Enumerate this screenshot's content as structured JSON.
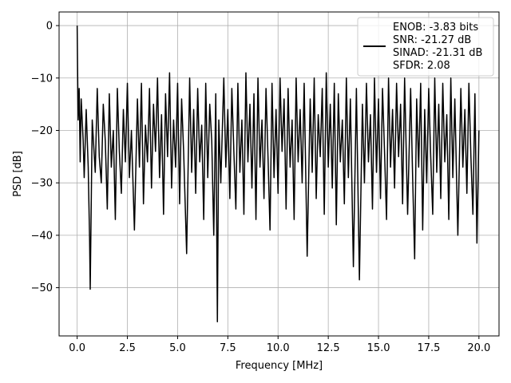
{
  "chart_data": {
    "type": "line",
    "title": "",
    "xlabel": "Frequency [MHz]",
    "ylabel": "PSD [dB]",
    "xlim": [
      -0.9,
      21.0
    ],
    "ylim": [
      -59.2,
      2.6
    ],
    "x_ticks": [
      0.0,
      2.5,
      5.0,
      7.5,
      10.0,
      12.5,
      15.0,
      17.5,
      20.0
    ],
    "x_tick_labels": [
      "0.0",
      "2.5",
      "5.0",
      "7.5",
      "10.0",
      "12.5",
      "15.0",
      "17.5",
      "20.0"
    ],
    "y_ticks": [
      0,
      -10,
      -20,
      -30,
      -40,
      -50
    ],
    "y_tick_labels": [
      "0",
      "−10",
      "−20",
      "−30",
      "−40",
      "−50"
    ],
    "grid": true,
    "legend": {
      "placement": "top-right",
      "entries": [
        "ENOB: -3.83 bits",
        "SNR: -21.27 dB",
        "SINAD: -21.31 dB",
        "SFDR: 2.08"
      ]
    },
    "series": [
      {
        "color": "#000000",
        "points": [
          [
            0.0,
            0.0
          ],
          [
            0.02,
            -8.0
          ],
          [
            0.05,
            -18.0
          ],
          [
            0.1,
            -12.0
          ],
          [
            0.15,
            -26.0
          ],
          [
            0.2,
            -14.0
          ],
          [
            0.3,
            -22.0
          ],
          [
            0.35,
            -29.0
          ],
          [
            0.45,
            -16.0
          ],
          [
            0.55,
            -27.0
          ],
          [
            0.62,
            -41.0
          ],
          [
            0.65,
            -50.3
          ],
          [
            0.75,
            -18.0
          ],
          [
            0.9,
            -28.0
          ],
          [
            1.0,
            -12.0
          ],
          [
            1.1,
            -25.0
          ],
          [
            1.2,
            -30.0
          ],
          [
            1.3,
            -15.0
          ],
          [
            1.4,
            -22.0
          ],
          [
            1.5,
            -35.0
          ],
          [
            1.6,
            -13.0
          ],
          [
            1.7,
            -27.0
          ],
          [
            1.8,
            -20.0
          ],
          [
            1.9,
            -37.0
          ],
          [
            2.0,
            -12.0
          ],
          [
            2.1,
            -24.0
          ],
          [
            2.2,
            -32.0
          ],
          [
            2.3,
            -16.0
          ],
          [
            2.4,
            -26.0
          ],
          [
            2.5,
            -11.0
          ],
          [
            2.6,
            -29.0
          ],
          [
            2.7,
            -20.0
          ],
          [
            2.85,
            -39.0
          ],
          [
            3.0,
            -14.0
          ],
          [
            3.1,
            -27.0
          ],
          [
            3.2,
            -11.0
          ],
          [
            3.3,
            -34.0
          ],
          [
            3.4,
            -19.0
          ],
          [
            3.5,
            -26.0
          ],
          [
            3.6,
            -12.0
          ],
          [
            3.7,
            -31.0
          ],
          [
            3.8,
            -15.0
          ],
          [
            3.9,
            -24.0
          ],
          [
            4.0,
            -10.0
          ],
          [
            4.1,
            -29.0
          ],
          [
            4.2,
            -17.0
          ],
          [
            4.3,
            -36.0
          ],
          [
            4.4,
            -13.0
          ],
          [
            4.5,
            -25.0
          ],
          [
            4.6,
            -9.0
          ],
          [
            4.7,
            -31.0
          ],
          [
            4.8,
            -18.0
          ],
          [
            4.9,
            -27.0
          ],
          [
            5.0,
            -11.0
          ],
          [
            5.1,
            -34.0
          ],
          [
            5.2,
            -14.0
          ],
          [
            5.3,
            -24.0
          ],
          [
            5.45,
            -43.5
          ],
          [
            5.6,
            -10.0
          ],
          [
            5.7,
            -28.0
          ],
          [
            5.8,
            -16.0
          ],
          [
            5.9,
            -32.0
          ],
          [
            6.0,
            -12.0
          ],
          [
            6.1,
            -26.0
          ],
          [
            6.2,
            -19.0
          ],
          [
            6.3,
            -37.0
          ],
          [
            6.4,
            -11.0
          ],
          [
            6.5,
            -29.0
          ],
          [
            6.6,
            -15.0
          ],
          [
            6.7,
            -22.0
          ],
          [
            6.8,
            -40.0
          ],
          [
            6.9,
            -13.0
          ],
          [
            6.98,
            -56.5
          ],
          [
            7.05,
            -18.0
          ],
          [
            7.15,
            -30.0
          ],
          [
            7.3,
            -10.0
          ],
          [
            7.4,
            -27.0
          ],
          [
            7.5,
            -16.0
          ],
          [
            7.6,
            -33.0
          ],
          [
            7.7,
            -12.0
          ],
          [
            7.8,
            -24.0
          ],
          [
            7.9,
            -35.0
          ],
          [
            8.0,
            -11.0
          ],
          [
            8.1,
            -28.0
          ],
          [
            8.2,
            -18.0
          ],
          [
            8.3,
            -36.0
          ],
          [
            8.4,
            -9.0
          ],
          [
            8.5,
            -26.0
          ],
          [
            8.6,
            -15.0
          ],
          [
            8.7,
            -31.0
          ],
          [
            8.8,
            -13.0
          ],
          [
            8.9,
            -37.0
          ],
          [
            9.0,
            -10.0
          ],
          [
            9.1,
            -27.0
          ],
          [
            9.2,
            -18.0
          ],
          [
            9.3,
            -33.0
          ],
          [
            9.4,
            -12.0
          ],
          [
            9.5,
            -25.0
          ],
          [
            9.6,
            -39.0
          ],
          [
            9.7,
            -11.0
          ],
          [
            9.8,
            -29.0
          ],
          [
            9.9,
            -16.0
          ],
          [
            10.0,
            -32.0
          ],
          [
            10.1,
            -10.0
          ],
          [
            10.2,
            -24.0
          ],
          [
            10.3,
            -14.0
          ],
          [
            10.4,
            -35.0
          ],
          [
            10.5,
            -12.0
          ],
          [
            10.6,
            -27.0
          ],
          [
            10.7,
            -18.0
          ],
          [
            10.8,
            -37.0
          ],
          [
            10.9,
            -10.0
          ],
          [
            11.0,
            -26.0
          ],
          [
            11.1,
            -16.0
          ],
          [
            11.2,
            -30.0
          ],
          [
            11.3,
            -11.0
          ],
          [
            11.45,
            -44.0
          ],
          [
            11.6,
            -14.0
          ],
          [
            11.7,
            -28.0
          ],
          [
            11.8,
            -10.0
          ],
          [
            11.9,
            -33.0
          ],
          [
            12.0,
            -17.0
          ],
          [
            12.1,
            -25.0
          ],
          [
            12.2,
            -12.0
          ],
          [
            12.3,
            -36.0
          ],
          [
            12.4,
            -9.0
          ],
          [
            12.5,
            -27.0
          ],
          [
            12.6,
            -15.0
          ],
          [
            12.7,
            -31.0
          ],
          [
            12.8,
            -11.0
          ],
          [
            12.9,
            -38.0
          ],
          [
            13.0,
            -13.0
          ],
          [
            13.1,
            -26.0
          ],
          [
            13.2,
            -18.0
          ],
          [
            13.3,
            -34.0
          ],
          [
            13.4,
            -10.0
          ],
          [
            13.5,
            -29.0
          ],
          [
            13.6,
            -14.0
          ],
          [
            13.75,
            -46.0
          ],
          [
            13.9,
            -12.0
          ],
          [
            14.05,
            -48.5
          ],
          [
            14.2,
            -15.0
          ],
          [
            14.3,
            -30.0
          ],
          [
            14.4,
            -11.0
          ],
          [
            14.5,
            -26.0
          ],
          [
            14.6,
            -17.0
          ],
          [
            14.7,
            -35.0
          ],
          [
            14.8,
            -10.0
          ],
          [
            14.9,
            -28.0
          ],
          [
            15.0,
            -14.0
          ],
          [
            15.1,
            -33.0
          ],
          [
            15.2,
            -12.0
          ],
          [
            15.3,
            -24.0
          ],
          [
            15.4,
            -37.0
          ],
          [
            15.5,
            -10.0
          ],
          [
            15.6,
            -27.0
          ],
          [
            15.7,
            -16.0
          ],
          [
            15.8,
            -31.0
          ],
          [
            15.9,
            -11.0
          ],
          [
            16.0,
            -25.0
          ],
          [
            16.1,
            -15.0
          ],
          [
            16.2,
            -34.0
          ],
          [
            16.3,
            -10.0
          ],
          [
            16.45,
            -36.0
          ],
          [
            16.6,
            -12.0
          ],
          [
            16.7,
            -29.0
          ],
          [
            16.8,
            -44.5
          ],
          [
            16.9,
            -14.0
          ],
          [
            17.0,
            -27.0
          ],
          [
            17.1,
            -11.0
          ],
          [
            17.2,
            -39.0
          ],
          [
            17.3,
            -16.0
          ],
          [
            17.4,
            -30.0
          ],
          [
            17.5,
            -12.0
          ],
          [
            17.6,
            -25.0
          ],
          [
            17.7,
            -36.0
          ],
          [
            17.8,
            -10.0
          ],
          [
            17.9,
            -28.0
          ],
          [
            18.0,
            -15.0
          ],
          [
            18.1,
            -33.0
          ],
          [
            18.2,
            -11.0
          ],
          [
            18.3,
            -26.0
          ],
          [
            18.4,
            -17.0
          ],
          [
            18.5,
            -37.0
          ],
          [
            18.6,
            -10.0
          ],
          [
            18.7,
            -29.0
          ],
          [
            18.8,
            -14.0
          ],
          [
            18.95,
            -40.0
          ],
          [
            19.1,
            -12.0
          ],
          [
            19.2,
            -27.0
          ],
          [
            19.3,
            -16.0
          ],
          [
            19.4,
            -32.0
          ],
          [
            19.5,
            -11.0
          ],
          [
            19.6,
            -25.0
          ],
          [
            19.7,
            -36.0
          ],
          [
            19.8,
            -13.0
          ],
          [
            19.9,
            -41.5
          ],
          [
            20.0,
            -20.0
          ]
        ]
      }
    ]
  }
}
